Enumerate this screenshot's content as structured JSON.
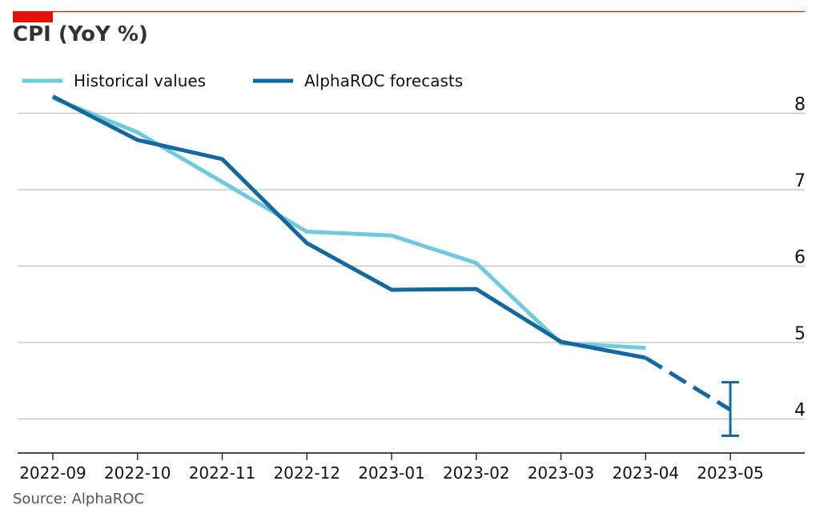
{
  "chart_data": {
    "type": "line",
    "title": "CPI (YoY %)",
    "source": "Source: AlphaROC",
    "xlabel": "",
    "ylabel": "",
    "categories": [
      "2022-09",
      "2022-10",
      "2022-11",
      "2022-12",
      "2023-01",
      "2023-02",
      "2023-03",
      "2023-04",
      "2023-05"
    ],
    "ylim": [
      3.55,
      8.25
    ],
    "yticks": [
      4,
      5,
      6,
      7,
      8
    ],
    "y_axis_position": "right",
    "grid": true,
    "legend_position": "top-left",
    "series": [
      {
        "name": "Historical values",
        "color": "#6ecadc",
        "style": "solid",
        "values": [
          8.2,
          7.75,
          7.1,
          6.45,
          6.4,
          6.04,
          4.99,
          4.93,
          null
        ]
      },
      {
        "name": "AlphaROC forecasts",
        "color": "#1169a0",
        "style": "solid-then-dashed",
        "forecast_start_index": 7,
        "values": [
          8.22,
          7.65,
          7.4,
          6.3,
          5.69,
          5.7,
          5.01,
          4.8,
          4.12
        ]
      }
    ],
    "error_bar": {
      "category": "2023-05",
      "low": 3.78,
      "high": 4.48,
      "color": "#1169a0"
    }
  },
  "accent_color": "#e3120b"
}
